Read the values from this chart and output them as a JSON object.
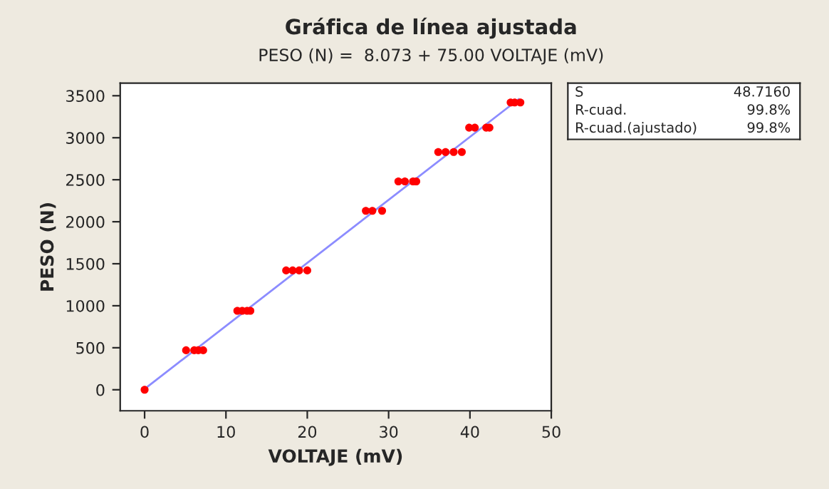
{
  "chart_data": {
    "type": "scatter",
    "title": "Gráfica de línea ajustada",
    "subtitle": "PESO (N) =  8.073 + 75.00 VOLTAJE (mV)",
    "xlabel": "VOLTAJE (mV)",
    "ylabel": "PESO (N)",
    "xlim": [
      -3,
      50
    ],
    "ylim": [
      -250,
      3650
    ],
    "xticks": [
      0,
      10,
      20,
      30,
      40,
      50
    ],
    "yticks": [
      0,
      500,
      1000,
      1500,
      2000,
      2500,
      3000,
      3500
    ],
    "grid": false,
    "legend": false,
    "annotations": [
      "S",
      "48.7160",
      "R-cuad.",
      "99.8%",
      "R-cuad.(ajustado)",
      "99.8%"
    ],
    "series": [
      {
        "color": "#ff0000",
        "marker": "circle",
        "x": [
          0,
          5.1,
          6.1,
          6.6,
          7.2,
          11.4,
          12,
          12.6,
          13,
          17.4,
          18.2,
          19,
          20,
          27.2,
          28,
          29.2,
          31.2,
          32,
          33,
          33.4,
          36.1,
          37,
          38,
          39,
          39.9,
          40.6,
          42,
          42.4,
          45,
          45.5,
          46.2
        ],
        "values": [
          0,
          470,
          470,
          470,
          470,
          940,
          940,
          940,
          940,
          1420,
          1420,
          1420,
          1420,
          2130,
          2130,
          2130,
          2480,
          2480,
          2480,
          2480,
          2830,
          2830,
          2830,
          2830,
          3120,
          3120,
          3120,
          3120,
          3420,
          3420,
          3420
        ]
      },
      {
        "type": "line",
        "color": "#8c8cff",
        "marker": "none",
        "x": [
          0,
          46
        ],
        "values": [
          10,
          3460
        ]
      }
    ]
  }
}
